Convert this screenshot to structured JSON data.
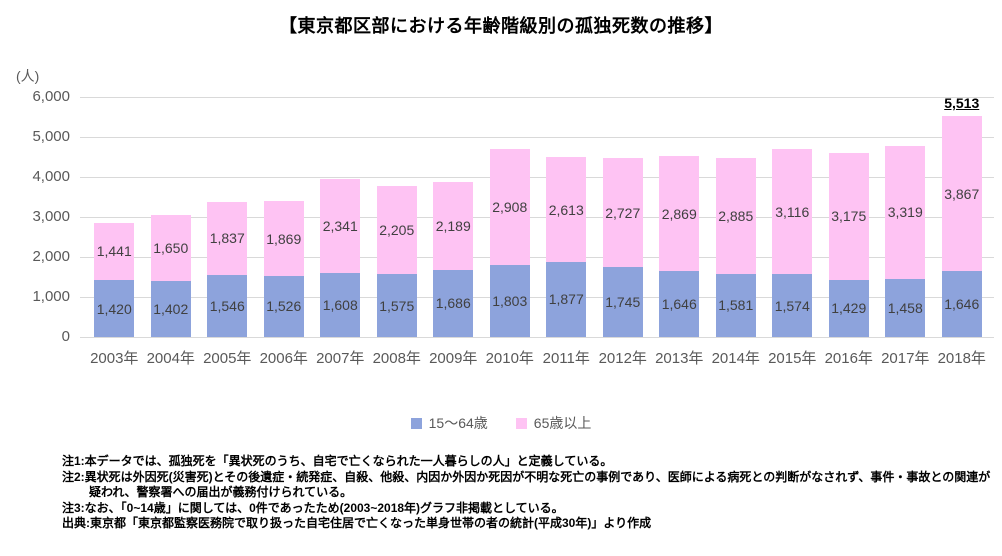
{
  "title": "【東京都区部における年齢階級別の孤独死数の推移】",
  "chart_data": {
    "type": "bar",
    "stacked": true,
    "title": "【東京都区部における年齢階級別の孤独死数の推移】",
    "ylabel": "(人)",
    "ylim": [
      0,
      6000
    ],
    "yticks": [
      0,
      1000,
      2000,
      3000,
      4000,
      5000,
      6000
    ],
    "grid": true,
    "legend_position": "bottom",
    "categories": [
      "2003年",
      "2004年",
      "2005年",
      "2006年",
      "2007年",
      "2008年",
      "2009年",
      "2010年",
      "2011年",
      "2012年",
      "2013年",
      "2014年",
      "2015年",
      "2016年",
      "2017年",
      "2018年"
    ],
    "series": [
      {
        "name": "15〜64歳",
        "color": "#8da3dc",
        "values": [
          1420,
          1402,
          1546,
          1526,
          1608,
          1575,
          1686,
          1803,
          1877,
          1745,
          1646,
          1581,
          1574,
          1429,
          1458,
          1646
        ]
      },
      {
        "name": "65歳以上",
        "color": "#fec3f3",
        "values": [
          1441,
          1650,
          1837,
          1869,
          2341,
          2205,
          2189,
          2908,
          2613,
          2727,
          2869,
          2885,
          3116,
          3175,
          3319,
          3867
        ]
      }
    ],
    "total_labels": {
      "2018年": "5,513"
    }
  },
  "colors": {
    "gridline": "#d9d9d9",
    "axis_text": "#595959",
    "value_text": "#404040"
  },
  "notes": [
    "注1:本データでは、孤独死を「異状死のうち、自宅で亡くなられた一人暮らしの人」と定義している。",
    "注2:異状死は外因死(災害死)とその後遺症・続発症、自殺、他殺、内因か外因か死因が不明な死亡の事例であり、医師による病死との判断がなされず、事件・事故との関連が疑われ、警察署への届出が義務付けられている。",
    "注3:なお、「0~14歳」に関しては、0件であったため(2003~2018年)グラフ非掲載としている。",
    "出典:東京都「東京都監察医務院で取り扱った自宅住居で亡くなった単身世帯の者の統計(平成30年)」より作成"
  ]
}
